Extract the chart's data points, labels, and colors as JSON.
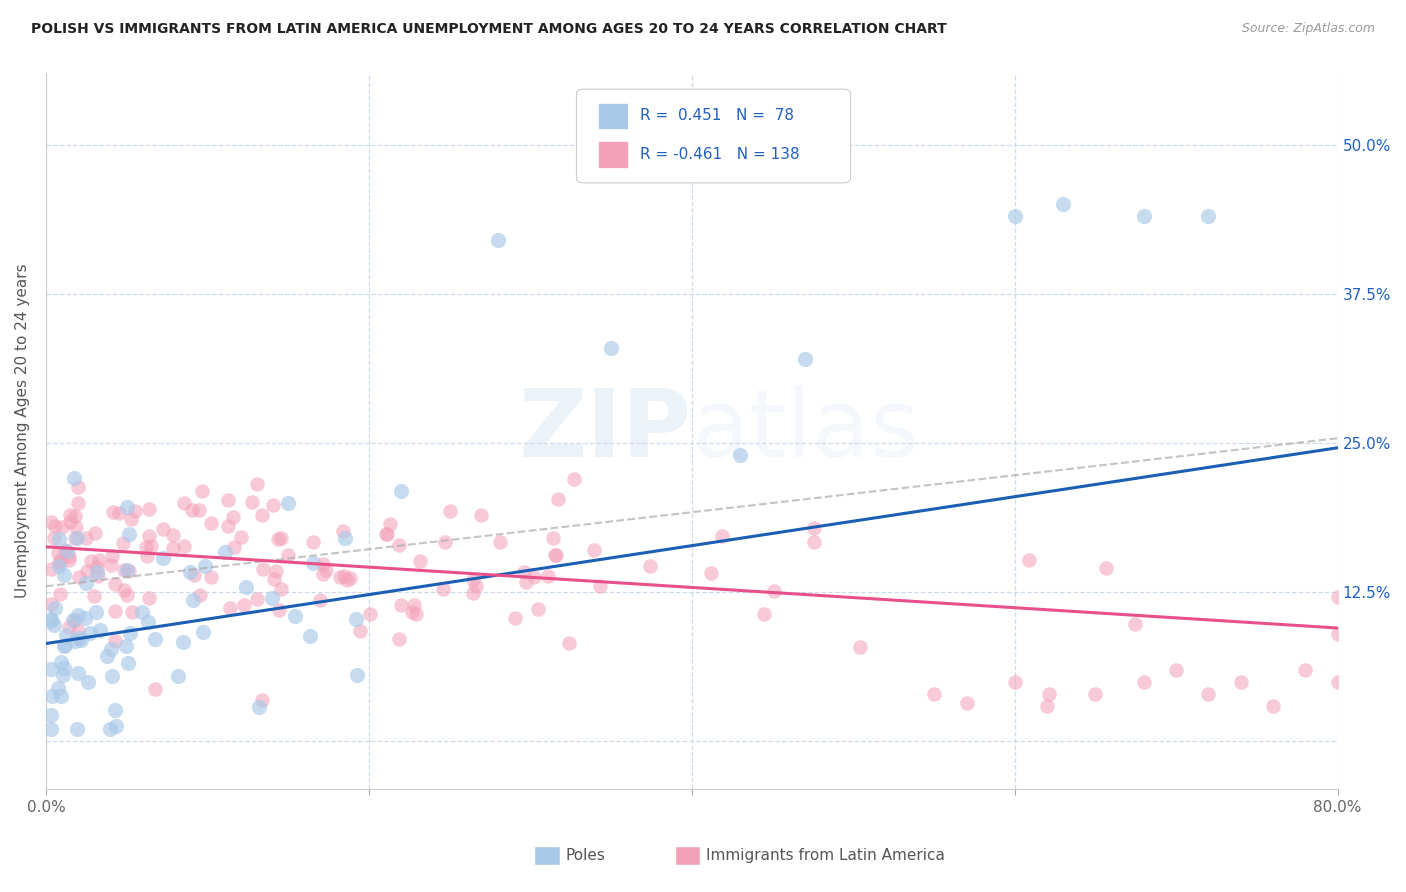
{
  "title": "POLISH VS IMMIGRANTS FROM LATIN AMERICA UNEMPLOYMENT AMONG AGES 20 TO 24 YEARS CORRELATION CHART",
  "source": "Source: ZipAtlas.com",
  "ylabel": "Unemployment Among Ages 20 to 24 years",
  "xlim": [
    0.0,
    0.8
  ],
  "ylim": [
    -0.04,
    0.56
  ],
  "ytick_positions": [
    0.0,
    0.125,
    0.25,
    0.375,
    0.5
  ],
  "poles_R": 0.451,
  "poles_N": 78,
  "latin_R": -0.461,
  "latin_N": 138,
  "poles_color": "#a8c8e8",
  "latin_color": "#f4a0b8",
  "poles_line_color": "#1a5fb4",
  "latin_line_color": "#e8508a",
  "ci_line_color": "#aaaaaa",
  "legend_text_color": "#2060c0",
  "background_color": "#ffffff",
  "grid_color": "#c8d8e8",
  "watermark_color": "#c8ddf0",
  "poles_line_intercept": 0.082,
  "poles_line_slope": 0.205,
  "latin_line_intercept": 0.163,
  "latin_line_slope": -0.085,
  "ci_intercept": 0.13,
  "ci_slope": 0.155
}
